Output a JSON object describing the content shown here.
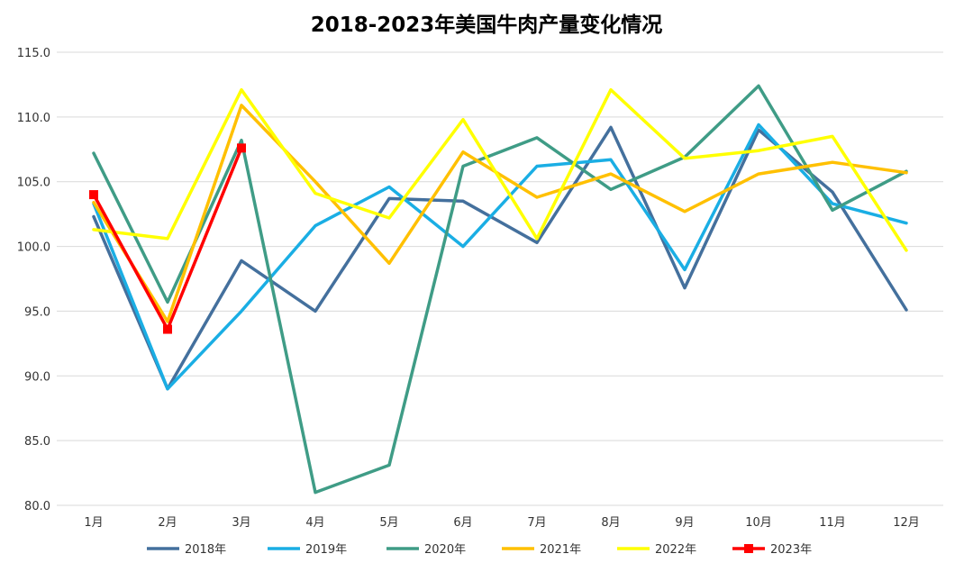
{
  "chart_data": {
    "type": "line",
    "title": "2018-2023年美国牛肉产量变化情况",
    "xlabel": "",
    "ylabel": "",
    "categories": [
      "1月",
      "2月",
      "3月",
      "4月",
      "5月",
      "6月",
      "7月",
      "8月",
      "9月",
      "10月",
      "11月",
      "12月"
    ],
    "ylim": [
      80.0,
      115.0
    ],
    "yticks": [
      "80.0",
      "85.0",
      "90.0",
      "95.0",
      "100.0",
      "105.0",
      "110.0",
      "115.0"
    ],
    "grid": true,
    "legend_position": "bottom",
    "series": [
      {
        "name": "2018年",
        "color": "#44709D",
        "marker": "none",
        "values": [
          102.3,
          89.0,
          98.9,
          95.0,
          103.7,
          103.5,
          100.3,
          109.2,
          96.8,
          109.0,
          104.2,
          95.1
        ]
      },
      {
        "name": "2019年",
        "color": "#1AAEE4",
        "marker": "none",
        "values": [
          103.3,
          89.0,
          95.0,
          101.6,
          104.6,
          100.0,
          106.2,
          106.7,
          98.2,
          109.4,
          103.3,
          101.8
        ]
      },
      {
        "name": "2020年",
        "color": "#3F9C86",
        "marker": "none",
        "values": [
          107.2,
          95.7,
          108.2,
          81.0,
          83.1,
          106.2,
          108.4,
          104.4,
          106.9,
          112.4,
          102.8,
          105.8
        ]
      },
      {
        "name": "2021年",
        "color": "#FFC000",
        "marker": "none",
        "values": [
          103.4,
          94.2,
          110.9,
          105.0,
          98.7,
          107.3,
          103.8,
          105.6,
          102.7,
          105.6,
          106.5,
          105.7
        ]
      },
      {
        "name": "2022年",
        "color": "#FFFF00",
        "marker": "none",
        "values": [
          101.3,
          100.6,
          112.1,
          104.1,
          102.2,
          109.8,
          100.6,
          112.1,
          106.8,
          107.4,
          108.5,
          99.7
        ]
      },
      {
        "name": "2023年",
        "color": "#FF0000",
        "marker": "square",
        "values": [
          104.0,
          93.6,
          107.6,
          null,
          null,
          null,
          null,
          null,
          null,
          null,
          null,
          null
        ]
      }
    ]
  }
}
